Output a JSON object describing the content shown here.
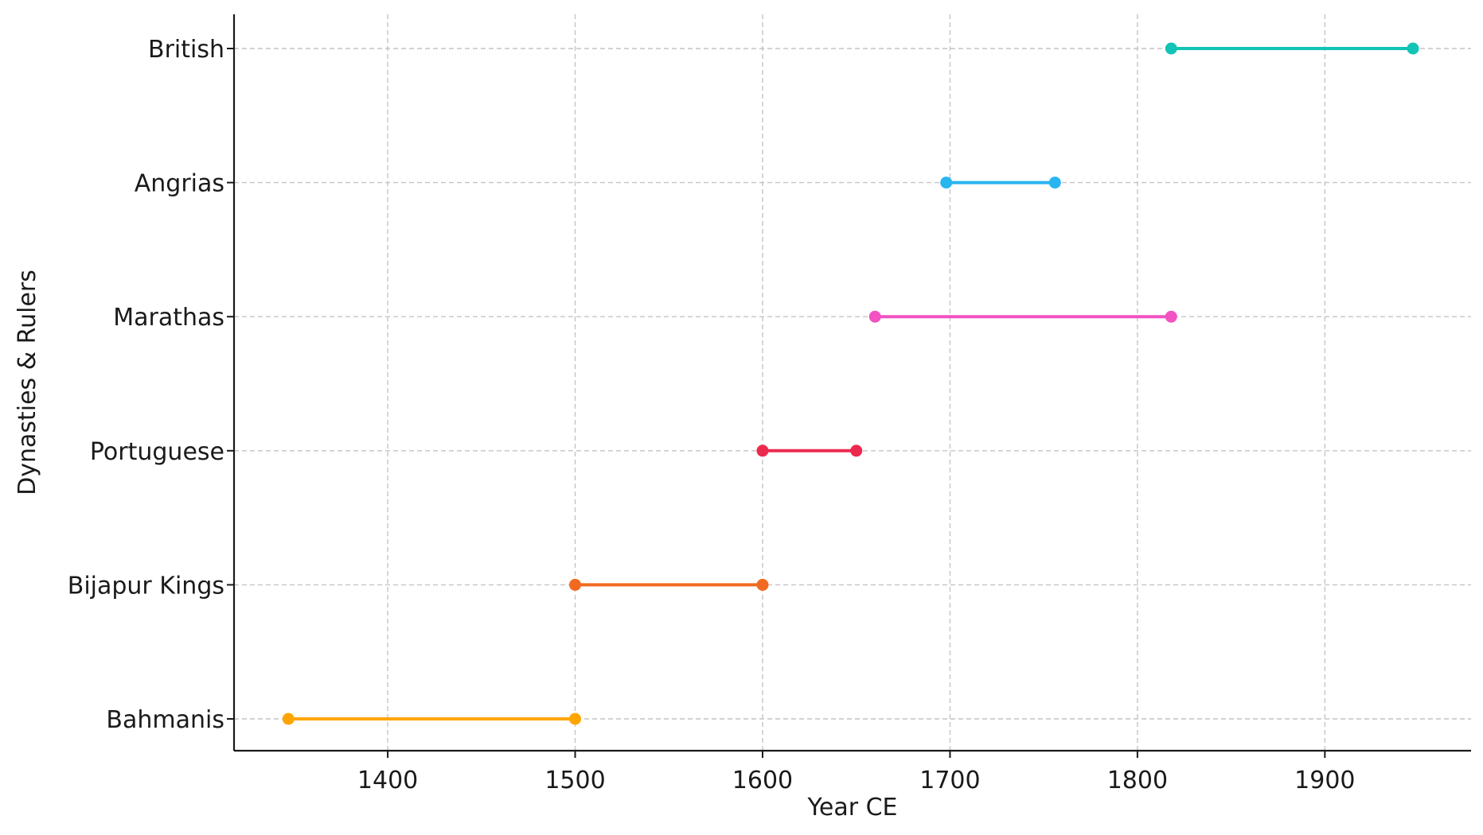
{
  "chart_data": {
    "type": "line",
    "title": "",
    "xlabel": "Year CE",
    "ylabel": "Dynasties & Rulers",
    "xlim": [
      1318,
      1978
    ],
    "xticks": [
      1400,
      1500,
      1600,
      1700,
      1800,
      1900
    ],
    "grid": true,
    "categories": [
      "Bahmanis",
      "Bijapur Kings",
      "Portuguese",
      "Marathas",
      "Angrias",
      "British"
    ],
    "series": [
      {
        "category": "Bahmanis",
        "start": 1347,
        "end": 1500,
        "color": "#FFA500"
      },
      {
        "category": "Bijapur Kings",
        "start": 1500,
        "end": 1600,
        "color": "#F26A1F"
      },
      {
        "category": "Portuguese",
        "start": 1600,
        "end": 1650,
        "color": "#EC2A4F"
      },
      {
        "category": "Marathas",
        "start": 1660,
        "end": 1818,
        "color": "#F252C2"
      },
      {
        "category": "Angrias",
        "start": 1698,
        "end": 1756,
        "color": "#28B5F0"
      },
      {
        "category": "British",
        "start": 1818,
        "end": 1947,
        "color": "#12C4B5"
      }
    ]
  }
}
